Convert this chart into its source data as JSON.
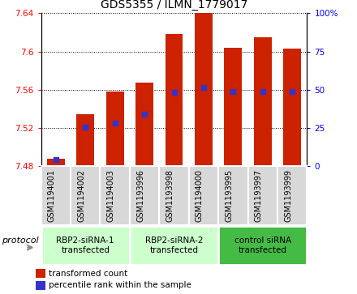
{
  "title": "GDS5355 / ILMN_1779017",
  "samples": [
    "GSM1194001",
    "GSM1194002",
    "GSM1194003",
    "GSM1193996",
    "GSM1193998",
    "GSM1194000",
    "GSM1193995",
    "GSM1193997",
    "GSM1193999"
  ],
  "red_values": [
    7.488,
    7.534,
    7.558,
    7.567,
    7.618,
    7.64,
    7.604,
    7.615,
    7.603
  ],
  "blue_values": [
    7.487,
    7.521,
    7.525,
    7.534,
    7.557,
    7.562,
    7.558,
    7.558,
    7.558
  ],
  "ymin": 7.48,
  "ymax": 7.64,
  "yticks": [
    7.48,
    7.52,
    7.56,
    7.6,
    7.64
  ],
  "right_yticks": [
    0,
    25,
    50,
    75,
    100
  ],
  "bar_color": "#cc2200",
  "blue_color": "#3333cc",
  "groups": [
    {
      "label": "RBP2-siRNA-1\ntransfected",
      "indices": [
        0,
        1,
        2
      ],
      "color": "#ccffcc"
    },
    {
      "label": "RBP2-siRNA-2\ntransfected",
      "indices": [
        3,
        4,
        5
      ],
      "color": "#ccffcc"
    },
    {
      "label": "control siRNA\ntransfected",
      "indices": [
        6,
        7,
        8
      ],
      "color": "#44bb44"
    }
  ],
  "protocol_label": "protocol",
  "legend_red": "transformed count",
  "legend_blue": "percentile rank within the sample",
  "title_fontsize": 10,
  "tick_fontsize": 7.5,
  "sample_fontsize": 7,
  "group_fontsize": 7.5
}
